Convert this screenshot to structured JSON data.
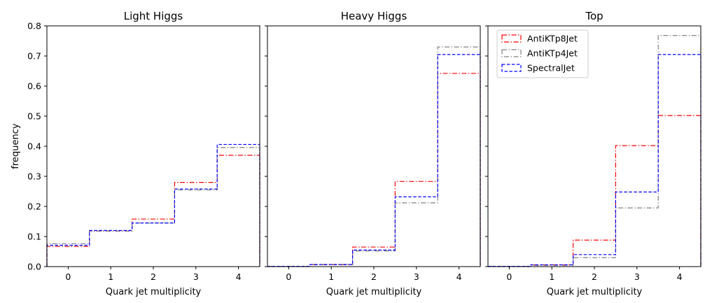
{
  "chart_data": [
    {
      "type": "step",
      "title": "Light Higgs",
      "xlabel": "Quark jet multiplicity",
      "ylabel": "frequency",
      "xlim": [
        -0.5,
        4.5
      ],
      "ylim": [
        0,
        0.8
      ],
      "x_ticks": [
        "0",
        "1",
        "2",
        "3",
        "4"
      ],
      "y_ticks": [
        "0.0",
        "0.1",
        "0.2",
        "0.3",
        "0.4",
        "0.5",
        "0.6",
        "0.7",
        "0.8"
      ],
      "show_y_tick_labels": true,
      "categories": [
        0,
        1,
        2,
        3,
        4
      ],
      "series": [
        {
          "name": "AntiKTp8Jet",
          "color": "#ff0000",
          "dash": "dashdot",
          "values": [
            0.067,
            0.118,
            0.158,
            0.28,
            0.37
          ]
        },
        {
          "name": "AntiKTp4Jet",
          "color": "#808080",
          "dash": "dashdot",
          "values": [
            0.076,
            0.118,
            0.145,
            0.255,
            0.396
          ]
        },
        {
          "name": "SpectralJet",
          "color": "#0000ff",
          "dash": "dashed",
          "values": [
            0.071,
            0.12,
            0.145,
            0.258,
            0.406
          ]
        }
      ]
    },
    {
      "type": "step",
      "title": "Heavy Higgs",
      "xlabel": "Quark jet multiplicity",
      "xlim": [
        -0.5,
        4.5
      ],
      "ylim": [
        0,
        0.8
      ],
      "x_ticks": [
        "0",
        "1",
        "2",
        "3",
        "4"
      ],
      "show_y_tick_labels": false,
      "categories": [
        0,
        1,
        2,
        3,
        4
      ],
      "series": [
        {
          "name": "AntiKTp8Jet",
          "color": "#ff0000",
          "dash": "dashdot",
          "values": [
            0.001,
            0.007,
            0.065,
            0.283,
            0.642
          ]
        },
        {
          "name": "AntiKTp4Jet",
          "color": "#808080",
          "dash": "dashdot",
          "values": [
            0.001,
            0.006,
            0.052,
            0.212,
            0.73
          ]
        },
        {
          "name": "SpectralJet",
          "color": "#0000ff",
          "dash": "dashed",
          "values": [
            0.001,
            0.007,
            0.055,
            0.232,
            0.705
          ]
        }
      ]
    },
    {
      "type": "step",
      "title": "Top",
      "xlabel": "Quark jet multiplicity",
      "xlim": [
        -0.5,
        4.5
      ],
      "ylim": [
        0,
        0.8
      ],
      "x_ticks": [
        "0",
        "1",
        "2",
        "3",
        "4"
      ],
      "show_y_tick_labels": false,
      "legend": "top-left",
      "categories": [
        0,
        1,
        2,
        3,
        4
      ],
      "series": [
        {
          "name": "AntiKTp8Jet",
          "color": "#ff0000",
          "dash": "dashdot",
          "values": [
            0.001,
            0.006,
            0.088,
            0.402,
            0.502
          ]
        },
        {
          "name": "AntiKTp4Jet",
          "color": "#808080",
          "dash": "dashdot",
          "values": [
            0.001,
            0.004,
            0.03,
            0.195,
            0.768
          ]
        },
        {
          "name": "SpectralJet",
          "color": "#0000ff",
          "dash": "dashed",
          "values": [
            0.001,
            0.006,
            0.04,
            0.248,
            0.705
          ]
        }
      ]
    }
  ]
}
